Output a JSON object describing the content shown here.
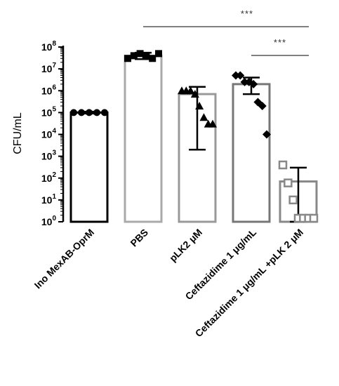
{
  "chart_data": {
    "type": "bar",
    "title": "",
    "ylabel": "CFU/mL",
    "yscale": "log",
    "ylim": [
      1,
      100000000
    ],
    "yticks": [
      {
        "base": "10",
        "exp": "0"
      },
      {
        "base": "10",
        "exp": "1"
      },
      {
        "base": "10",
        "exp": "2"
      },
      {
        "base": "10",
        "exp": "3"
      },
      {
        "base": "10",
        "exp": "4"
      },
      {
        "base": "10",
        "exp": "5"
      },
      {
        "base": "10",
        "exp": "6"
      },
      {
        "base": "10",
        "exp": "7"
      },
      {
        "base": "10",
        "exp": "8"
      }
    ],
    "categories": [
      "Ino MexAB-OprM",
      "PBS",
      "pLK2 μM",
      "Ceftazidime 1 μg/mL",
      "Ceftazidime 1 μg/mL +pLK 2 μM"
    ],
    "bars": [
      {
        "mean": 100000,
        "err_low": 90000,
        "err_high": 110000,
        "color": "#000000",
        "marker": "circle",
        "marker_fill": "#000000",
        "points": [
          100000,
          100000,
          100000,
          100000,
          100000
        ]
      },
      {
        "mean": 40000000,
        "err_low": 28000000,
        "err_high": 55000000,
        "color": "#aaaaaa",
        "marker": "square",
        "marker_fill": "#000000",
        "points": [
          30000000,
          40000000,
          50000000,
          40000000,
          30000000,
          50000000
        ]
      },
      {
        "mean": 700000,
        "err_low": 2000,
        "err_high": 1500000,
        "color": "#999999",
        "marker": "triangle",
        "marker_fill": "#000000",
        "points": [
          1000000,
          1000000,
          1000000,
          700000,
          200000,
          60000,
          30000,
          30000
        ]
      },
      {
        "mean": 2000000,
        "err_low": 700000,
        "err_high": 4000000,
        "color": "#777777",
        "marker": "diamond",
        "marker_fill": "#000000",
        "points": [
          5000000,
          5000000,
          2500000,
          2500000,
          2000000,
          300000,
          200000,
          10000
        ]
      },
      {
        "mean": 70,
        "err_low": 1,
        "err_high": 300,
        "color": "#888888",
        "marker": "square-open",
        "marker_fill": "#ffffff",
        "points": [
          400,
          60,
          10,
          1,
          1,
          1,
          1
        ]
      }
    ],
    "significance": [
      {
        "from": 1,
        "to": 4,
        "label": "***"
      },
      {
        "from": 3,
        "to": 4,
        "label": "***"
      }
    ],
    "grid": false,
    "legend": "none"
  }
}
